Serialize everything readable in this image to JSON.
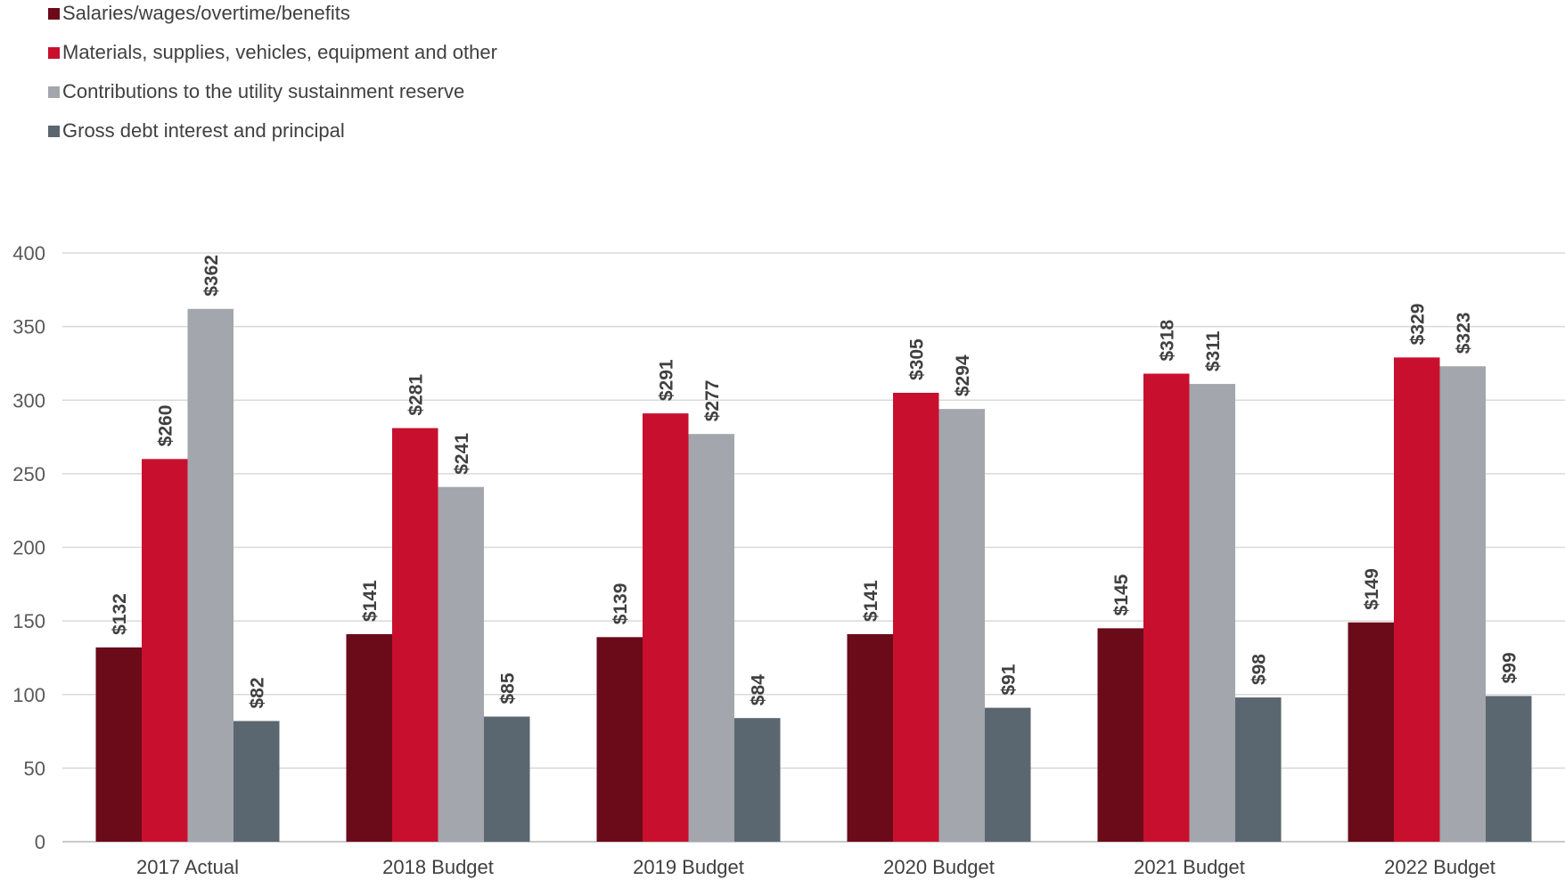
{
  "chart_data": {
    "type": "bar",
    "categories": [
      "2017 Actual",
      "2018 Budget",
      "2019 Budget",
      "2020 Budget",
      "2021 Budget",
      "2022 Budget"
    ],
    "series": [
      {
        "name": "Salaries/wages/overtime/benefits",
        "color": "#6b0a18",
        "values": [
          132,
          141,
          139,
          141,
          145,
          149
        ],
        "labels": [
          "$132",
          "$141",
          "$139",
          "$141",
          "$145",
          "$149"
        ]
      },
      {
        "name": "Materials, supplies, vehicles, equipment and other",
        "color": "#c8102e",
        "values": [
          260,
          281,
          291,
          305,
          318,
          329
        ],
        "labels": [
          "$260",
          "$281",
          "$291",
          "$305",
          "$318",
          "$329"
        ]
      },
      {
        "name": "Contributions to the utility sustainment reserve",
        "color": "#a3a6ac",
        "values": [
          362,
          241,
          277,
          294,
          311,
          323
        ],
        "labels": [
          "$362",
          "$241",
          "$277",
          "$294",
          "$311",
          "$323"
        ]
      },
      {
        "name": "Gross debt interest and principal",
        "color": "#5b6770",
        "values": [
          82,
          85,
          84,
          91,
          98,
          99
        ],
        "labels": [
          "$82",
          "$85",
          "$84",
          "$91",
          "$98",
          "$99"
        ]
      }
    ],
    "yticks": [
      "0",
      "50",
      "100",
      "150",
      "200",
      "250",
      "300",
      "350",
      "400"
    ],
    "ylim": [
      0,
      400
    ],
    "grid": true,
    "legend_position": "top-left"
  }
}
